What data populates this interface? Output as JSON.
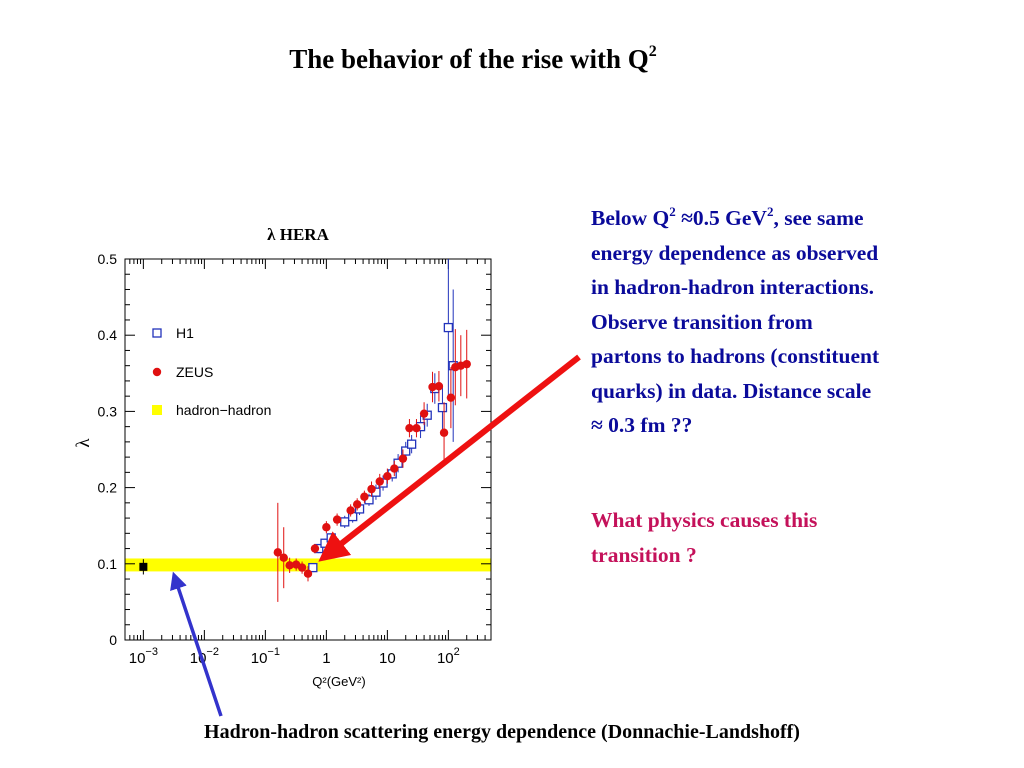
{
  "slide": {
    "title_main": "The behavior of the rise with Q",
    "title_sup": "2"
  },
  "explanation": {
    "line1": {
      "a": "Below Q",
      "sup1": "2",
      "b": " ≈0.5 GeV",
      "sup2": "2",
      "c": ", see same"
    },
    "line2": "energy dependence as observed",
    "line3": "in hadron-hadron interactions.",
    "line4": "Observe transition from",
    "line5": "partons to hadrons (constituent",
    "line6": "quarks) in data. Distance scale",
    "line7": "≈ 0.3 fm ??"
  },
  "question": {
    "line1": "What physics causes this",
    "line2": "transition ?"
  },
  "caption": "Hadron-hadron scattering energy dependence (Donnachie-Landshoff)",
  "colors": {
    "text_blue": "#0a0a9a",
    "text_magenta": "#c4115a",
    "h1": "#2233bb",
    "zeus": "#e01010",
    "band": "#ffff00",
    "arrow_red": "#ee1111",
    "arrow_blue": "#3333cc"
  },
  "chart_data": {
    "type": "scatter",
    "title": "λ HERA",
    "xlabel": "Q²(GeV²)",
    "ylabel": "λ",
    "x_scale": "log",
    "xlim": [
      0.0005,
      500
    ],
    "ylim": [
      0,
      0.5
    ],
    "y_ticks": [
      "0",
      "0.1",
      "0.2",
      "0.3",
      "0.4",
      "0.5"
    ],
    "x_tick_labels": [
      {
        "value": 0.001,
        "base": "10",
        "exp": "−3"
      },
      {
        "value": 0.01,
        "base": "10",
        "exp": "−2"
      },
      {
        "value": 0.1,
        "base": "10",
        "exp": "−1"
      },
      {
        "value": 1,
        "base": "1",
        "exp": ""
      },
      {
        "value": 10,
        "base": "10",
        "exp": ""
      },
      {
        "value": 100,
        "base": "10",
        "exp": "2"
      }
    ],
    "legend": {
      "position": "top-left"
    },
    "series": [
      {
        "name": "H1",
        "marker": "open-square",
        "points": [
          {
            "x": 0.6,
            "y": 0.095,
            "err": 0.006
          },
          {
            "x": 0.75,
            "y": 0.12,
            "err": 0.006
          },
          {
            "x": 0.95,
            "y": 0.127,
            "err": 0.006
          },
          {
            "x": 1.2,
            "y": 0.134,
            "err": 0.006
          },
          {
            "x": 2.0,
            "y": 0.155,
            "err": 0.008
          },
          {
            "x": 2.7,
            "y": 0.162,
            "err": 0.008
          },
          {
            "x": 3.5,
            "y": 0.172,
            "err": 0.008
          },
          {
            "x": 5,
            "y": 0.184,
            "err": 0.008
          },
          {
            "x": 6.5,
            "y": 0.194,
            "err": 0.01
          },
          {
            "x": 8.5,
            "y": 0.206,
            "err": 0.01
          },
          {
            "x": 12,
            "y": 0.218,
            "err": 0.01
          },
          {
            "x": 15,
            "y": 0.232,
            "err": 0.012
          },
          {
            "x": 20,
            "y": 0.248,
            "err": 0.012
          },
          {
            "x": 25,
            "y": 0.257,
            "err": 0.012
          },
          {
            "x": 35,
            "y": 0.28,
            "err": 0.015
          },
          {
            "x": 45,
            "y": 0.295,
            "err": 0.015
          },
          {
            "x": 60,
            "y": 0.33,
            "err": 0.02
          },
          {
            "x": 80,
            "y": 0.305,
            "err": 0.03
          },
          {
            "x": 100,
            "y": 0.41,
            "err": 0.09
          },
          {
            "x": 120,
            "y": 0.36,
            "err": 0.1
          }
        ]
      },
      {
        "name": "ZEUS",
        "marker": "filled-circle",
        "points": [
          {
            "x": 0.16,
            "y": 0.115,
            "err": 0.065
          },
          {
            "x": 0.2,
            "y": 0.108,
            "err": 0.04
          },
          {
            "x": 0.25,
            "y": 0.098,
            "err": 0.01
          },
          {
            "x": 0.32,
            "y": 0.099,
            "err": 0.008
          },
          {
            "x": 0.4,
            "y": 0.095,
            "err": 0.008
          },
          {
            "x": 0.5,
            "y": 0.087,
            "err": 0.01
          },
          {
            "x": 0.65,
            "y": 0.12,
            "err": 0.006
          },
          {
            "x": 1.0,
            "y": 0.148,
            "err": 0.008
          },
          {
            "x": 1.5,
            "y": 0.158,
            "err": 0.008
          },
          {
            "x": 2.5,
            "y": 0.17,
            "err": 0.008
          },
          {
            "x": 3.2,
            "y": 0.178,
            "err": 0.008
          },
          {
            "x": 4.2,
            "y": 0.188,
            "err": 0.008
          },
          {
            "x": 5.5,
            "y": 0.198,
            "err": 0.01
          },
          {
            "x": 7.5,
            "y": 0.208,
            "err": 0.01
          },
          {
            "x": 10,
            "y": 0.215,
            "err": 0.01
          },
          {
            "x": 13,
            "y": 0.225,
            "err": 0.01
          },
          {
            "x": 18,
            "y": 0.238,
            "err": 0.012
          },
          {
            "x": 23,
            "y": 0.278,
            "err": 0.012
          },
          {
            "x": 30,
            "y": 0.278,
            "err": 0.012
          },
          {
            "x": 40,
            "y": 0.297,
            "err": 0.015
          },
          {
            "x": 55,
            "y": 0.332,
            "err": 0.02
          },
          {
            "x": 70,
            "y": 0.333,
            "err": 0.02
          },
          {
            "x": 85,
            "y": 0.272,
            "err": 0.04
          },
          {
            "x": 110,
            "y": 0.318,
            "err": 0.04
          },
          {
            "x": 130,
            "y": 0.358,
            "err": 0.05
          },
          {
            "x": 160,
            "y": 0.36,
            "err": 0.04
          },
          {
            "x": 200,
            "y": 0.362,
            "err": 0.045
          }
        ]
      },
      {
        "name": "hadron−hadron",
        "marker": "band",
        "band": {
          "y_low": 0.09,
          "y_high": 0.107
        },
        "points": [
          {
            "x": 0.001,
            "y": 0.096,
            "err": 0.01
          }
        ]
      }
    ]
  }
}
